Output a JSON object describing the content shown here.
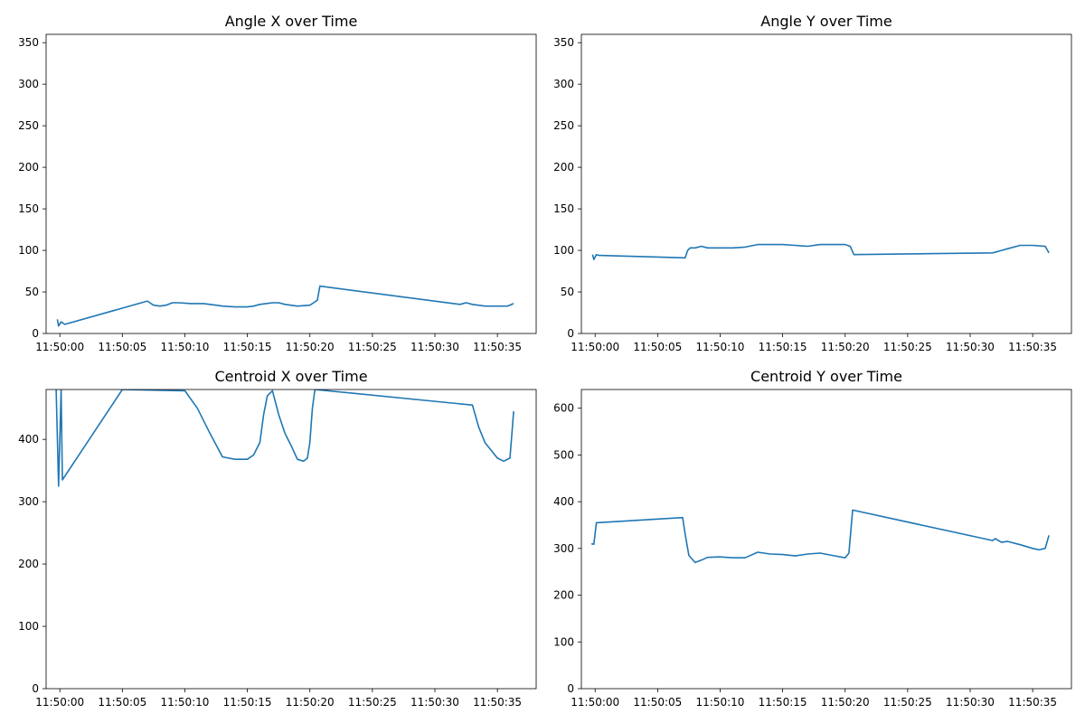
{
  "chart_data": [
    {
      "type": "line",
      "title": "Angle X over Time",
      "xlabel": "",
      "ylabel": "",
      "xlim": [
        "11:49:58.9",
        "11:50:38.1"
      ],
      "ylim": [
        0,
        360
      ],
      "x_ticks": [
        "11:50:00",
        "11:50:05",
        "11:50:10",
        "11:50:15",
        "11:50:20",
        "11:50:25",
        "11:50:30",
        "11:50:35"
      ],
      "y_ticks": [
        0,
        50,
        100,
        150,
        200,
        250,
        300,
        350
      ],
      "color": "#1f77b4",
      "series": [
        {
          "x": [
            "11:49:59.8",
            "11:49:59.9",
            "11:50:00.1",
            "11:50:00.4",
            "11:50:07.0",
            "11:50:07.3",
            "11:50:07.5",
            "11:50:08.0",
            "11:50:08.5",
            "11:50:09.0",
            "11:50:09.5",
            "11:50:10.5",
            "11:50:11.5",
            "11:50:12.5",
            "11:50:13.0",
            "11:50:14.0",
            "11:50:15.0",
            "11:50:15.5",
            "11:50:16.0",
            "11:50:16.5",
            "11:50:17.0",
            "11:50:17.5",
            "11:50:18.0",
            "11:50:19.0",
            "11:50:20.0",
            "11:50:20.3",
            "11:50:20.6",
            "11:50:20.8",
            "11:50:32.0",
            "11:50:32.5",
            "11:50:33.0",
            "11:50:34.0",
            "11:50:35.0",
            "11:50:35.8",
            "11:50:36.3"
          ],
          "y": [
            17,
            9,
            14,
            11,
            39,
            36,
            34,
            33,
            34,
            37,
            37,
            36,
            36,
            34,
            33,
            32,
            32,
            33,
            35,
            36,
            37,
            37,
            35,
            33,
            34,
            37,
            40,
            57,
            35,
            37,
            35,
            33,
            33,
            33,
            36
          ]
        }
      ]
    },
    {
      "type": "line",
      "title": "Angle Y over Time",
      "xlabel": "",
      "ylabel": "",
      "xlim": [
        "11:49:58.9",
        "11:50:38.1"
      ],
      "ylim": [
        0,
        360
      ],
      "x_ticks": [
        "11:50:00",
        "11:50:05",
        "11:50:10",
        "11:50:15",
        "11:50:20",
        "11:50:25",
        "11:50:30",
        "11:50:35"
      ],
      "y_ticks": [
        0,
        50,
        100,
        150,
        200,
        250,
        300,
        350
      ],
      "color": "#1f77b4",
      "series": [
        {
          "x": [
            "11:49:59.8",
            "11:49:59.9",
            "11:50:00.1",
            "11:50:00.3",
            "11:50:07.2",
            "11:50:07.4",
            "11:50:07.6",
            "11:50:08.0",
            "11:50:08.5",
            "11:50:09.0",
            "11:50:10.0",
            "11:50:11.0",
            "11:50:12.0",
            "11:50:13.0",
            "11:50:14.0",
            "11:50:15.0",
            "11:50:16.0",
            "11:50:17.0",
            "11:50:18.0",
            "11:50:19.0",
            "11:50:20.0",
            "11:50:20.4",
            "11:50:20.7",
            "11:50:31.8",
            "11:50:32.5",
            "11:50:33.0",
            "11:50:34.0",
            "11:50:35.0",
            "11:50:36.0",
            "11:50:36.3"
          ],
          "y": [
            95,
            89,
            95,
            94,
            91,
            100,
            103,
            103,
            105,
            103,
            103,
            103,
            104,
            107,
            107,
            107,
            106,
            105,
            107,
            107,
            107,
            105,
            95,
            97,
            100,
            102,
            106,
            106,
            105,
            97
          ]
        }
      ]
    },
    {
      "type": "line",
      "title": "Centroid X over Time",
      "xlabel": "",
      "ylabel": "",
      "xlim": [
        "11:49:58.9",
        "11:50:38.1"
      ],
      "ylim": [
        0,
        480
      ],
      "x_ticks": [
        "11:50:00",
        "11:50:05",
        "11:50:10",
        "11:50:15",
        "11:50:20",
        "11:50:25",
        "11:50:30",
        "11:50:35"
      ],
      "y_ticks": [
        0,
        100,
        200,
        300,
        400
      ],
      "color": "#1f77b4",
      "series": [
        {
          "x": [
            "11:49:59.7",
            "11:49:59.9",
            "11:50:00.1",
            "11:50:00.2",
            "11:50:05.0",
            "11:50:10.0",
            "11:50:11.0",
            "11:50:12.0",
            "11:50:13.0",
            "11:50:13.5",
            "11:50:14.0",
            "11:50:15.0",
            "11:50:15.5",
            "11:50:16.0",
            "11:50:16.3",
            "11:50:16.6",
            "11:50:17.0",
            "11:50:17.5",
            "11:50:18.0",
            "11:50:18.5",
            "11:50:19.0",
            "11:50:19.5",
            "11:50:19.8",
            "11:50:20.0",
            "11:50:20.2",
            "11:50:20.4",
            "11:50:33.0",
            "11:50:33.5",
            "11:50:34.0",
            "11:50:35.0",
            "11:50:35.5",
            "11:50:36.0",
            "11:50:36.3"
          ],
          "y": [
            480,
            325,
            480,
            335,
            480,
            478,
            450,
            410,
            372,
            370,
            368,
            368,
            375,
            395,
            440,
            470,
            478,
            440,
            410,
            390,
            368,
            365,
            370,
            395,
            450,
            480,
            455,
            420,
            395,
            370,
            365,
            370,
            445
          ]
        }
      ]
    },
    {
      "type": "line",
      "title": "Centroid Y over Time",
      "xlabel": "",
      "ylabel": "",
      "xlim": [
        "11:49:58.9",
        "11:50:38.1"
      ],
      "ylim": [
        0,
        640
      ],
      "x_ticks": [
        "11:50:00",
        "11:50:05",
        "11:50:10",
        "11:50:15",
        "11:50:20",
        "11:50:25",
        "11:50:30",
        "11:50:35"
      ],
      "y_ticks": [
        0,
        100,
        200,
        300,
        400,
        500,
        600
      ],
      "color": "#1f77b4",
      "series": [
        {
          "x": [
            "11:49:59.7",
            "11:49:59.9",
            "11:50:00.1",
            "11:50:07.0",
            "11:50:07.2",
            "11:50:07.5",
            "11:50:08.0",
            "11:50:08.5",
            "11:50:09.0",
            "11:50:10.0",
            "11:50:11.0",
            "11:50:12.0",
            "11:50:13.0",
            "11:50:14.0",
            "11:50:15.0",
            "11:50:16.0",
            "11:50:17.0",
            "11:50:18.0",
            "11:50:19.0",
            "11:50:20.0",
            "11:50:20.3",
            "11:50:20.6",
            "11:50:31.8",
            "11:50:32.0",
            "11:50:32.5",
            "11:50:33.0",
            "11:50:34.0",
            "11:50:35.0",
            "11:50:35.5",
            "11:50:36.0",
            "11:50:36.3"
          ],
          "y": [
            310,
            309,
            355,
            366,
            330,
            285,
            270,
            275,
            281,
            282,
            280,
            280,
            292,
            288,
            287,
            284,
            288,
            290,
            285,
            280,
            290,
            382,
            317,
            321,
            313,
            315,
            308,
            300,
            297,
            300,
            328
          ]
        }
      ]
    }
  ]
}
